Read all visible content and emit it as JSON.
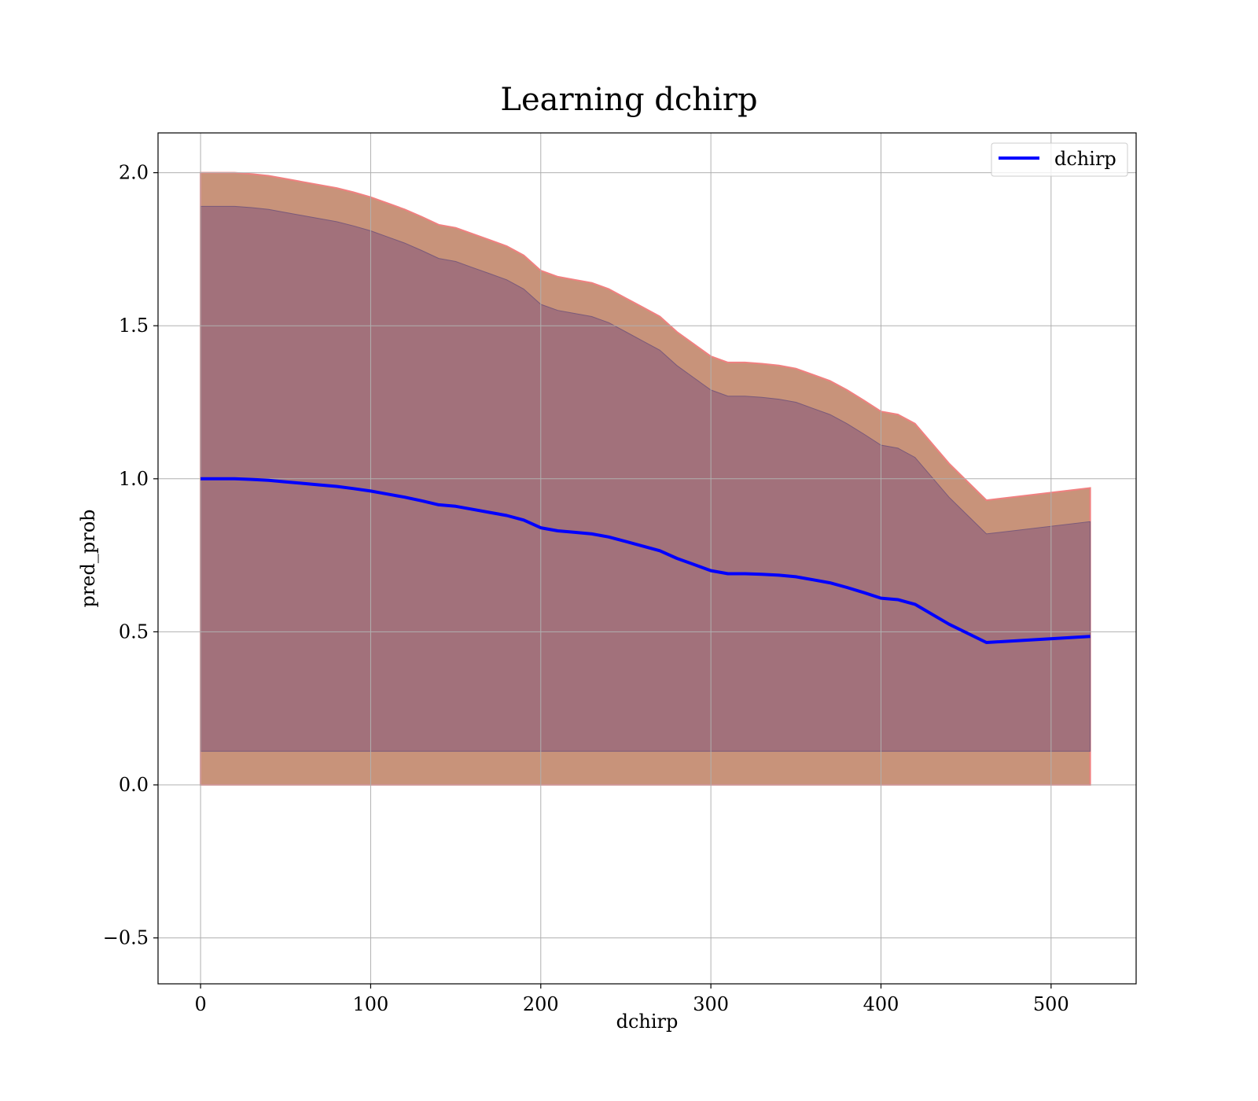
{
  "chart_data": {
    "type": "line",
    "title": "Learning dchirp",
    "xlabel": "dchirp",
    "ylabel": "pred_prob",
    "xlim": [
      -25,
      550
    ],
    "ylim": [
      -0.65,
      2.13
    ],
    "grid": true,
    "legend_position": "top-right",
    "x_ticks": [
      0,
      100,
      200,
      300,
      400,
      500
    ],
    "y_ticks": [
      -0.5,
      0.0,
      0.5,
      1.0,
      1.5,
      2.0
    ],
    "x_tick_labels": [
      "0",
      "100",
      "200",
      "300",
      "400",
      "500"
    ],
    "y_tick_labels": [
      "−0.5",
      "0.0",
      "0.5",
      "1.0",
      "1.5",
      "2.0"
    ],
    "colors": {
      "mean": "#0000ff",
      "outer_band_fill": "#c8937a",
      "outer_band_edge": "#f08080",
      "inner_band_fill": "#a2717b",
      "inner_band_edge": "#7a5a7a",
      "grid": "#b0b0b0"
    },
    "x": [
      0,
      10,
      20,
      30,
      40,
      50,
      60,
      70,
      80,
      90,
      100,
      110,
      120,
      130,
      140,
      150,
      160,
      170,
      180,
      190,
      200,
      210,
      220,
      230,
      240,
      250,
      260,
      270,
      280,
      290,
      300,
      310,
      320,
      330,
      340,
      350,
      360,
      370,
      380,
      390,
      400,
      410,
      420,
      440,
      462,
      523
    ],
    "series": [
      {
        "name": "dchirp",
        "values": [
          1.0,
          1.0,
          1.0,
          0.998,
          0.995,
          0.99,
          0.985,
          0.98,
          0.975,
          0.968,
          0.96,
          0.95,
          0.94,
          0.928,
          0.915,
          0.91,
          0.9,
          0.89,
          0.88,
          0.865,
          0.84,
          0.83,
          0.825,
          0.82,
          0.81,
          0.795,
          0.78,
          0.765,
          0.74,
          0.72,
          0.7,
          0.69,
          0.69,
          0.688,
          0.685,
          0.68,
          0.67,
          0.66,
          0.645,
          0.628,
          0.61,
          0.605,
          0.59,
          0.525,
          0.465,
          0.485
        ]
      }
    ],
    "bands": [
      {
        "level": "outer",
        "upper": [
          2.0,
          2.0,
          2.0,
          1.996,
          1.99,
          1.98,
          1.97,
          1.96,
          1.95,
          1.936,
          1.92,
          1.9,
          1.88,
          1.856,
          1.83,
          1.82,
          1.8,
          1.78,
          1.76,
          1.73,
          1.68,
          1.66,
          1.65,
          1.64,
          1.62,
          1.59,
          1.56,
          1.53,
          1.48,
          1.44,
          1.4,
          1.38,
          1.38,
          1.376,
          1.37,
          1.36,
          1.34,
          1.32,
          1.29,
          1.256,
          1.22,
          1.21,
          1.18,
          1.05,
          0.93,
          0.97
        ],
        "lower": [
          0.0,
          0.0,
          0.0,
          0.0,
          0.0,
          0.0,
          0.0,
          0.0,
          0.0,
          0.0,
          0.0,
          0.0,
          0.0,
          0.0,
          0.0,
          0.0,
          0.0,
          0.0,
          0.0,
          0.0,
          0.0,
          0.0,
          0.0,
          0.0,
          0.0,
          0.0,
          0.0,
          0.0,
          0.0,
          0.0,
          0.0,
          0.0,
          0.0,
          0.0,
          0.0,
          0.0,
          0.0,
          0.0,
          0.0,
          0.0,
          0.0,
          0.0,
          0.0,
          0.0,
          0.0,
          0.0
        ]
      },
      {
        "level": "inner",
        "upper": [
          1.89,
          1.89,
          1.89,
          1.886,
          1.88,
          1.87,
          1.86,
          1.85,
          1.84,
          1.826,
          1.81,
          1.79,
          1.77,
          1.746,
          1.72,
          1.71,
          1.69,
          1.67,
          1.65,
          1.62,
          1.57,
          1.55,
          1.54,
          1.53,
          1.51,
          1.48,
          1.45,
          1.42,
          1.37,
          1.33,
          1.29,
          1.27,
          1.27,
          1.266,
          1.26,
          1.25,
          1.23,
          1.21,
          1.18,
          1.146,
          1.11,
          1.1,
          1.07,
          0.94,
          0.82,
          0.86
        ],
        "lower": [
          0.11,
          0.11,
          0.11,
          0.11,
          0.11,
          0.11,
          0.11,
          0.11,
          0.11,
          0.11,
          0.11,
          0.11,
          0.11,
          0.11,
          0.11,
          0.11,
          0.11,
          0.11,
          0.11,
          0.11,
          0.11,
          0.11,
          0.11,
          0.11,
          0.11,
          0.11,
          0.11,
          0.11,
          0.11,
          0.11,
          0.11,
          0.11,
          0.11,
          0.11,
          0.11,
          0.11,
          0.11,
          0.11,
          0.11,
          0.11,
          0.11,
          0.11,
          0.11,
          0.11,
          0.11,
          0.11
        ]
      }
    ]
  }
}
